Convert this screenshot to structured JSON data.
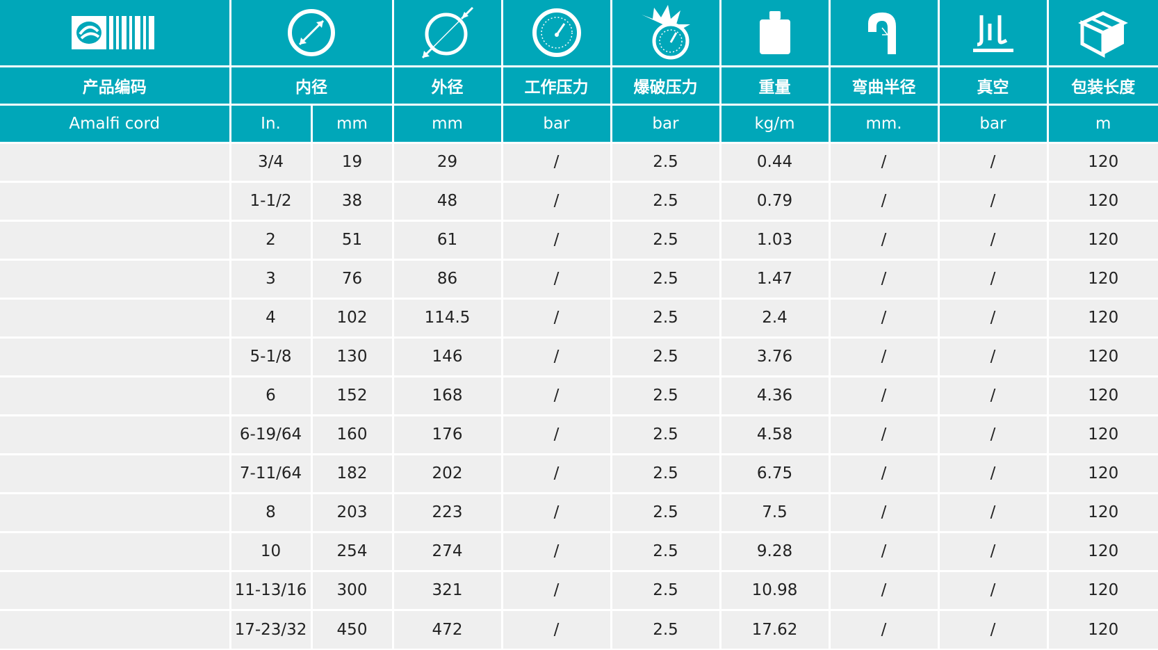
{
  "headers": {
    "product_code": "产品编码",
    "inner_diameter": "内径",
    "outer_diameter": "外径",
    "working_pressure": "工作压力",
    "burst_pressure": "爆破压力",
    "weight": "重量",
    "bend_radius": "弯曲半径",
    "vacuum": "真空",
    "pack_length": "包装长度"
  },
  "units": {
    "product": "Amalfi cord",
    "id_in": "In.",
    "id_mm": "mm",
    "od": "mm",
    "wp": "bar",
    "bp": "bar",
    "weight": "kg/m",
    "bend": "mm.",
    "vacuum": "bar",
    "length": "m"
  },
  "icons": [
    "brand-logo-icon",
    "inner-diameter-icon",
    "outer-diameter-icon",
    "pressure-gauge-icon",
    "burst-gauge-icon",
    "weight-icon",
    "bend-radius-icon",
    "vacuum-icon",
    "package-icon"
  ],
  "colors": {
    "header_bg": "#00a7b9",
    "row_bg": "#efefef"
  },
  "rows": [
    {
      "code": "",
      "in": "3/4",
      "mm": "19",
      "od": "29",
      "wp": "/",
      "bp": "2.5",
      "weight": "0.44",
      "bend": "/",
      "vac": "/",
      "len": "120"
    },
    {
      "code": "",
      "in": "1-1/2",
      "mm": "38",
      "od": "48",
      "wp": "/",
      "bp": "2.5",
      "weight": "0.79",
      "bend": "/",
      "vac": "/",
      "len": "120"
    },
    {
      "code": "",
      "in": "2",
      "mm": "51",
      "od": "61",
      "wp": "/",
      "bp": "2.5",
      "weight": "1.03",
      "bend": "/",
      "vac": "/",
      "len": "120"
    },
    {
      "code": "",
      "in": "3",
      "mm": "76",
      "od": "86",
      "wp": "/",
      "bp": "2.5",
      "weight": "1.47",
      "bend": "/",
      "vac": "/",
      "len": "120"
    },
    {
      "code": "",
      "in": "4",
      "mm": "102",
      "od": "114.5",
      "wp": "/",
      "bp": "2.5",
      "weight": "2.4",
      "bend": "/",
      "vac": "/",
      "len": "120"
    },
    {
      "code": "",
      "in": "5-1/8",
      "mm": "130",
      "od": "146",
      "wp": "/",
      "bp": "2.5",
      "weight": "3.76",
      "bend": "/",
      "vac": "/",
      "len": "120"
    },
    {
      "code": "",
      "in": "6",
      "mm": "152",
      "od": "168",
      "wp": "/",
      "bp": "2.5",
      "weight": "4.36",
      "bend": "/",
      "vac": "/",
      "len": "120"
    },
    {
      "code": "",
      "in": "6-19/64",
      "mm": "160",
      "od": "176",
      "wp": "/",
      "bp": "2.5",
      "weight": "4.58",
      "bend": "/",
      "vac": "/",
      "len": "120"
    },
    {
      "code": "",
      "in": "7-11/64",
      "mm": "182",
      "od": "202",
      "wp": "/",
      "bp": "2.5",
      "weight": "6.75",
      "bend": "/",
      "vac": "/",
      "len": "120"
    },
    {
      "code": "",
      "in": "8",
      "mm": "203",
      "od": "223",
      "wp": "/",
      "bp": "2.5",
      "weight": "7.5",
      "bend": "/",
      "vac": "/",
      "len": "120"
    },
    {
      "code": "",
      "in": "10",
      "mm": "254",
      "od": "274",
      "wp": "/",
      "bp": "2.5",
      "weight": "9.28",
      "bend": "/",
      "vac": "/",
      "len": "120"
    },
    {
      "code": "",
      "in": "11-13/16",
      "mm": "300",
      "od": "321",
      "wp": "/",
      "bp": "2.5",
      "weight": "10.98",
      "bend": "/",
      "vac": "/",
      "len": "120"
    },
    {
      "code": "",
      "in": "17-23/32",
      "mm": "450",
      "od": "472",
      "wp": "/",
      "bp": "2.5",
      "weight": "17.62",
      "bend": "/",
      "vac": "/",
      "len": "120"
    }
  ]
}
